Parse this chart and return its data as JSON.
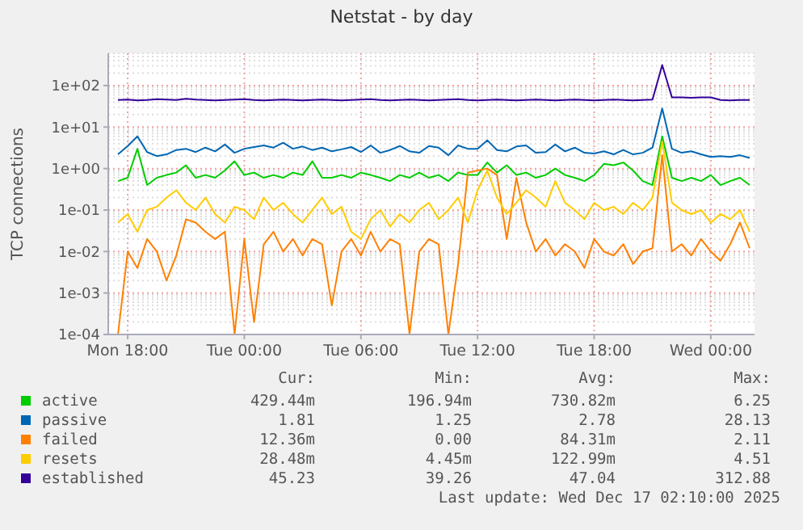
{
  "chart_data": {
    "type": "line",
    "title": "Netstat - by day",
    "ylabel": "TCP connections",
    "log": "y",
    "grid": true,
    "legend": "bottom",
    "ylim": [
      0.0001,
      600
    ],
    "yticks": [
      {
        "value": 0.0001,
        "label": "1e-04"
      },
      {
        "value": 0.001,
        "label": "1e-03"
      },
      {
        "value": 0.01,
        "label": "1e-02"
      },
      {
        "value": 0.1,
        "label": "1e-01"
      },
      {
        "value": 1,
        "label": "1e+00"
      },
      {
        "value": 10,
        "label": "1e+01"
      },
      {
        "value": 100,
        "label": "1e+02"
      }
    ],
    "xlim": [
      "2025-12-15T17:00",
      "2025-12-17T02:15"
    ],
    "xticks": [
      {
        "value": "2025-12-15T18:00",
        "label": "Mon 18:00"
      },
      {
        "value": "2025-12-16T00:00",
        "label": "Tue 00:00"
      },
      {
        "value": "2025-12-16T06:00",
        "label": "Tue 06:00"
      },
      {
        "value": "2025-12-16T12:00",
        "label": "Tue 12:00"
      },
      {
        "value": "2025-12-16T18:00",
        "label": "Tue 18:00"
      },
      {
        "value": "2025-12-17T00:00",
        "label": "Wed 00:00"
      }
    ],
    "x": [
      "2025-12-15T17:30",
      "2025-12-15T18:00",
      "2025-12-15T18:30",
      "2025-12-15T19:00",
      "2025-12-15T19:30",
      "2025-12-15T20:00",
      "2025-12-15T20:30",
      "2025-12-15T21:00",
      "2025-12-15T21:30",
      "2025-12-15T22:00",
      "2025-12-15T22:30",
      "2025-12-15T23:00",
      "2025-12-15T23:30",
      "2025-12-16T00:00",
      "2025-12-16T00:30",
      "2025-12-16T01:00",
      "2025-12-16T01:30",
      "2025-12-16T02:00",
      "2025-12-16T02:30",
      "2025-12-16T03:00",
      "2025-12-16T03:30",
      "2025-12-16T04:00",
      "2025-12-16T04:30",
      "2025-12-16T05:00",
      "2025-12-16T05:30",
      "2025-12-16T06:00",
      "2025-12-16T06:30",
      "2025-12-16T07:00",
      "2025-12-16T07:30",
      "2025-12-16T08:00",
      "2025-12-16T08:30",
      "2025-12-16T09:00",
      "2025-12-16T09:30",
      "2025-12-16T10:00",
      "2025-12-16T10:30",
      "2025-12-16T11:00",
      "2025-12-16T11:30",
      "2025-12-16T12:00",
      "2025-12-16T12:30",
      "2025-12-16T13:00",
      "2025-12-16T13:30",
      "2025-12-16T14:00",
      "2025-12-16T14:30",
      "2025-12-16T15:00",
      "2025-12-16T15:30",
      "2025-12-16T16:00",
      "2025-12-16T16:30",
      "2025-12-16T17:00",
      "2025-12-16T17:30",
      "2025-12-16T18:00",
      "2025-12-16T18:30",
      "2025-12-16T19:00",
      "2025-12-16T19:30",
      "2025-12-16T20:00",
      "2025-12-16T20:30",
      "2025-12-16T21:00",
      "2025-12-16T21:30",
      "2025-12-16T22:00",
      "2025-12-16T22:30",
      "2025-12-16T23:00",
      "2025-12-16T23:30",
      "2025-12-17T00:00",
      "2025-12-17T00:30",
      "2025-12-17T01:00",
      "2025-12-17T01:30",
      "2025-12-17T02:00"
    ],
    "series": [
      {
        "name": "active",
        "color": "#00cc00",
        "values": [
          0.5,
          0.6,
          3,
          0.4,
          0.6,
          0.7,
          0.8,
          1.2,
          0.6,
          0.7,
          0.6,
          0.9,
          1.5,
          0.7,
          0.8,
          0.6,
          0.7,
          0.6,
          0.8,
          0.7,
          1.5,
          0.6,
          0.6,
          0.7,
          0.6,
          0.8,
          0.7,
          0.6,
          0.5,
          0.7,
          0.6,
          0.8,
          0.6,
          0.7,
          0.5,
          0.8,
          0.7,
          0.7,
          1.4,
          0.8,
          1.2,
          0.7,
          0.8,
          0.6,
          0.7,
          1,
          0.7,
          0.6,
          0.5,
          0.7,
          1.3,
          1.2,
          1.4,
          0.9,
          0.5,
          0.4,
          6,
          0.6,
          0.5,
          0.6,
          0.5,
          0.7,
          0.4,
          0.5,
          0.6,
          0.4
        ]
      },
      {
        "name": "passive",
        "color": "#0066b3",
        "values": [
          2.2,
          3.5,
          6,
          2.5,
          2,
          2.2,
          2.8,
          3,
          2.5,
          3.2,
          2.6,
          3.8,
          2.4,
          3,
          3.3,
          3.6,
          3.2,
          4.2,
          3,
          3.4,
          2.8,
          3.2,
          2.6,
          2.9,
          3.3,
          2.5,
          3.6,
          2.4,
          2.8,
          3.5,
          2.6,
          2.4,
          3.5,
          3.2,
          2.1,
          3.6,
          3,
          3,
          4.8,
          2.8,
          2.6,
          3.4,
          3.6,
          2.4,
          2.5,
          3.8,
          2.6,
          3.2,
          2.4,
          2.3,
          2.6,
          2.2,
          2.8,
          2.2,
          2.4,
          3.2,
          28,
          3,
          2.4,
          2.6,
          2.2,
          1.9,
          2,
          1.9,
          2.1,
          1.8
        ]
      },
      {
        "name": "failed",
        "color": "#ff8000",
        "values": [
          0.0001,
          0.01,
          0.004,
          0.02,
          0.01,
          0.002,
          0.008,
          0.06,
          0.05,
          0.03,
          0.02,
          0.03,
          0.0001,
          0.02,
          0.0002,
          0.015,
          0.03,
          0.01,
          0.02,
          0.008,
          0.02,
          0.015,
          0.0005,
          0.01,
          0.02,
          0.008,
          0.03,
          0.01,
          0.02,
          0.015,
          0.0001,
          0.01,
          0.02,
          0.015,
          0.0001,
          0.005,
          0.8,
          0.9,
          1,
          0.7,
          0.02,
          0.6,
          0.05,
          0.01,
          0.02,
          0.008,
          0.015,
          0.01,
          0.004,
          0.02,
          0.01,
          0.008,
          0.015,
          0.005,
          0.01,
          0.012,
          2.1,
          0.01,
          0.015,
          0.008,
          0.02,
          0.01,
          0.006,
          0.015,
          0.05,
          0.012
        ]
      },
      {
        "name": "resets",
        "color": "#ffcc00",
        "values": [
          0.05,
          0.08,
          0.03,
          0.1,
          0.12,
          0.2,
          0.3,
          0.15,
          0.1,
          0.2,
          0.08,
          0.05,
          0.12,
          0.1,
          0.06,
          0.2,
          0.1,
          0.15,
          0.08,
          0.05,
          0.1,
          0.2,
          0.08,
          0.12,
          0.03,
          0.02,
          0.06,
          0.1,
          0.04,
          0.08,
          0.05,
          0.1,
          0.15,
          0.06,
          0.1,
          0.2,
          0.05,
          0.3,
          0.9,
          0.2,
          0.08,
          0.15,
          0.3,
          0.2,
          0.12,
          0.5,
          0.15,
          0.1,
          0.06,
          0.15,
          0.1,
          0.12,
          0.08,
          0.15,
          0.1,
          0.2,
          4.5,
          0.15,
          0.1,
          0.08,
          0.1,
          0.05,
          0.08,
          0.06,
          0.1,
          0.03
        ]
      },
      {
        "name": "established",
        "color": "#330099",
        "values": [
          45,
          46,
          44,
          45,
          47,
          46,
          45,
          48,
          46,
          45,
          44,
          45,
          46,
          47,
          45,
          44,
          45,
          46,
          45,
          44,
          45,
          46,
          45,
          44,
          45,
          46,
          47,
          45,
          44,
          45,
          46,
          45,
          44,
          45,
          46,
          47,
          45,
          44,
          45,
          46,
          45,
          44,
          45,
          46,
          45,
          44,
          45,
          46,
          45,
          44,
          45,
          46,
          45,
          44,
          45,
          46,
          312,
          52,
          52,
          51,
          52,
          52,
          45,
          44,
          45,
          45
        ]
      }
    ],
    "annotations": [
      "Cur:",
      "Min:",
      "Avg:",
      "Max:",
      "429.44m",
      "196.94m",
      "730.82m",
      "6.25",
      "1.81",
      "1.25",
      "2.78",
      "28.13",
      "12.36m",
      "0.00",
      "84.31m",
      "2.11",
      "28.48m",
      "4.45m",
      "122.99m",
      "4.51",
      "45.23",
      "39.26",
      "47.04",
      "312.88",
      "Last update: Wed Dec 17 02:10:00 2025"
    ]
  }
}
